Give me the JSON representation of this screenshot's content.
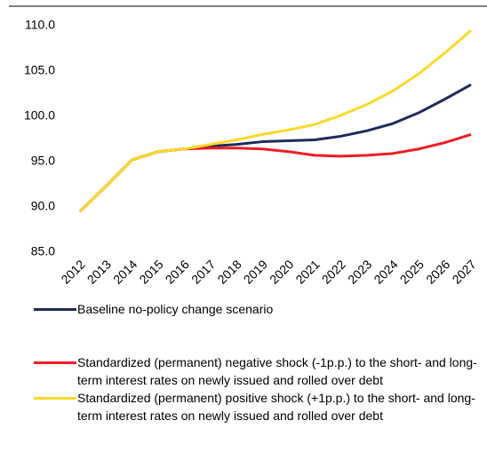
{
  "chart_data": {
    "type": "line",
    "categories": [
      "2012",
      "2013",
      "2014",
      "2015",
      "2016",
      "2017",
      "2018",
      "2019",
      "2020",
      "2021",
      "2022",
      "2023",
      "2024",
      "2025",
      "2026",
      "2027"
    ],
    "series": [
      {
        "name": "Baseline no-policy change scenario",
        "color": "#1f2a5c",
        "values": [
          89.5,
          92.3,
          95.2,
          96.1,
          96.4,
          96.7,
          96.9,
          97.2,
          97.3,
          97.4,
          97.8,
          98.4,
          99.2,
          100.4,
          101.9,
          103.5
        ]
      },
      {
        "name": "Standardized (permanent) negative shock (-1p.p.) to the short- and long-term interest rates on newly issued and rolled over debt",
        "color": "#ee1c25",
        "values": [
          89.5,
          92.3,
          95.2,
          96.1,
          96.4,
          96.5,
          96.5,
          96.4,
          96.1,
          95.7,
          95.6,
          95.7,
          95.9,
          96.4,
          97.1,
          98.0
        ]
      },
      {
        "name": "Standardized (permanent) positive shock (+1p.p.) to the short- and long-term interest rates on newly issued and rolled over debt",
        "color": "#fcd92a",
        "values": [
          89.5,
          92.3,
          95.2,
          96.1,
          96.4,
          96.9,
          97.4,
          98.0,
          98.5,
          99.1,
          100.1,
          101.3,
          102.8,
          104.7,
          107.0,
          109.5
        ]
      }
    ],
    "ylim": [
      85,
      110
    ],
    "yticks": [
      {
        "value": 85,
        "label": "85.0"
      },
      {
        "value": 90,
        "label": "90.0"
      },
      {
        "value": 95,
        "label": "95.0"
      },
      {
        "value": 100,
        "label": "100.0"
      },
      {
        "value": 105,
        "label": "105.0"
      },
      {
        "value": 110,
        "label": "110.0"
      }
    ],
    "grid": false,
    "legend": "bottom"
  }
}
